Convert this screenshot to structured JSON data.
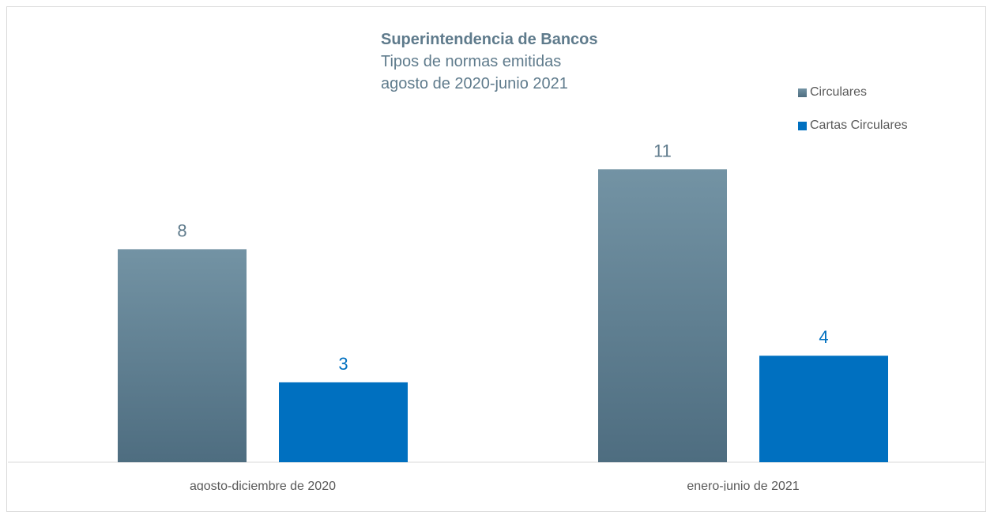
{
  "title": {
    "line1": "Superintendencia de Bancos",
    "line2": "Tipos de normas emitidas",
    "line3": "agosto de 2020-junio 2021"
  },
  "colors": {
    "circulares_top": "#7393a4",
    "circulares_bottom": "#4e6d80",
    "cartas": "#0070c0",
    "label_gray": "#5f7b8c",
    "label_blue": "#0070c0"
  },
  "chart_data": {
    "type": "bar",
    "categories": [
      "agosto-diciembre de 2020",
      "enero-junio de 2021"
    ],
    "series": [
      {
        "name": "Circulares",
        "values": [
          8,
          11
        ]
      },
      {
        "name": "Cartas Circulares",
        "values": [
          3,
          4
        ]
      }
    ],
    "title": "Superintendencia de Bancos",
    "subtitle": "Tipos de normas emitidas agosto de 2020-junio 2021",
    "legend": "top-right",
    "grid": false,
    "ylim": [
      0,
      13
    ]
  }
}
